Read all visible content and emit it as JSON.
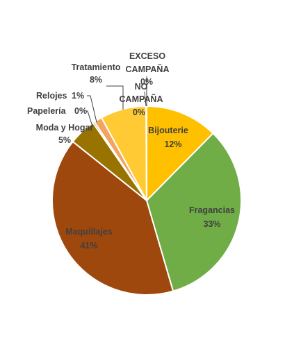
{
  "chart_data": {
    "type": "pie",
    "title": "",
    "start_angle_deg": 0,
    "direction": "clockwise",
    "slices": [
      {
        "name": "Bijouterie",
        "value_label": "12%",
        "value": 12.5,
        "color": "#FFC000"
      },
      {
        "name": "Fragancias",
        "value_label": "33%",
        "value": 33.4,
        "color": "#70AD47"
      },
      {
        "name": "Maquillajes",
        "value_label": "41%",
        "value": 40.6,
        "color": "#9E480E"
      },
      {
        "name": "Moda y Hogar",
        "value_label": "5%",
        "value": 4.7,
        "color": "#997300"
      },
      {
        "name": "Papelería",
        "value_label": "0%",
        "value": 0.3,
        "color": "#43682B"
      },
      {
        "name": "Relojes",
        "value_label": "1%",
        "value": 1.4,
        "color": "#F4A460"
      },
      {
        "name": "Tratamiento",
        "value_label": "8%",
        "value": 7.9,
        "color": "#FFCA33"
      },
      {
        "name": "EXCESO CAMPAÑA",
        "value_label": "0%",
        "value": 0.05,
        "color": "#5B9BD5"
      },
      {
        "name": "NO CAMPAÑA",
        "value_label": "0%",
        "value": 0.05,
        "color": "#A5A5A5"
      }
    ]
  }
}
